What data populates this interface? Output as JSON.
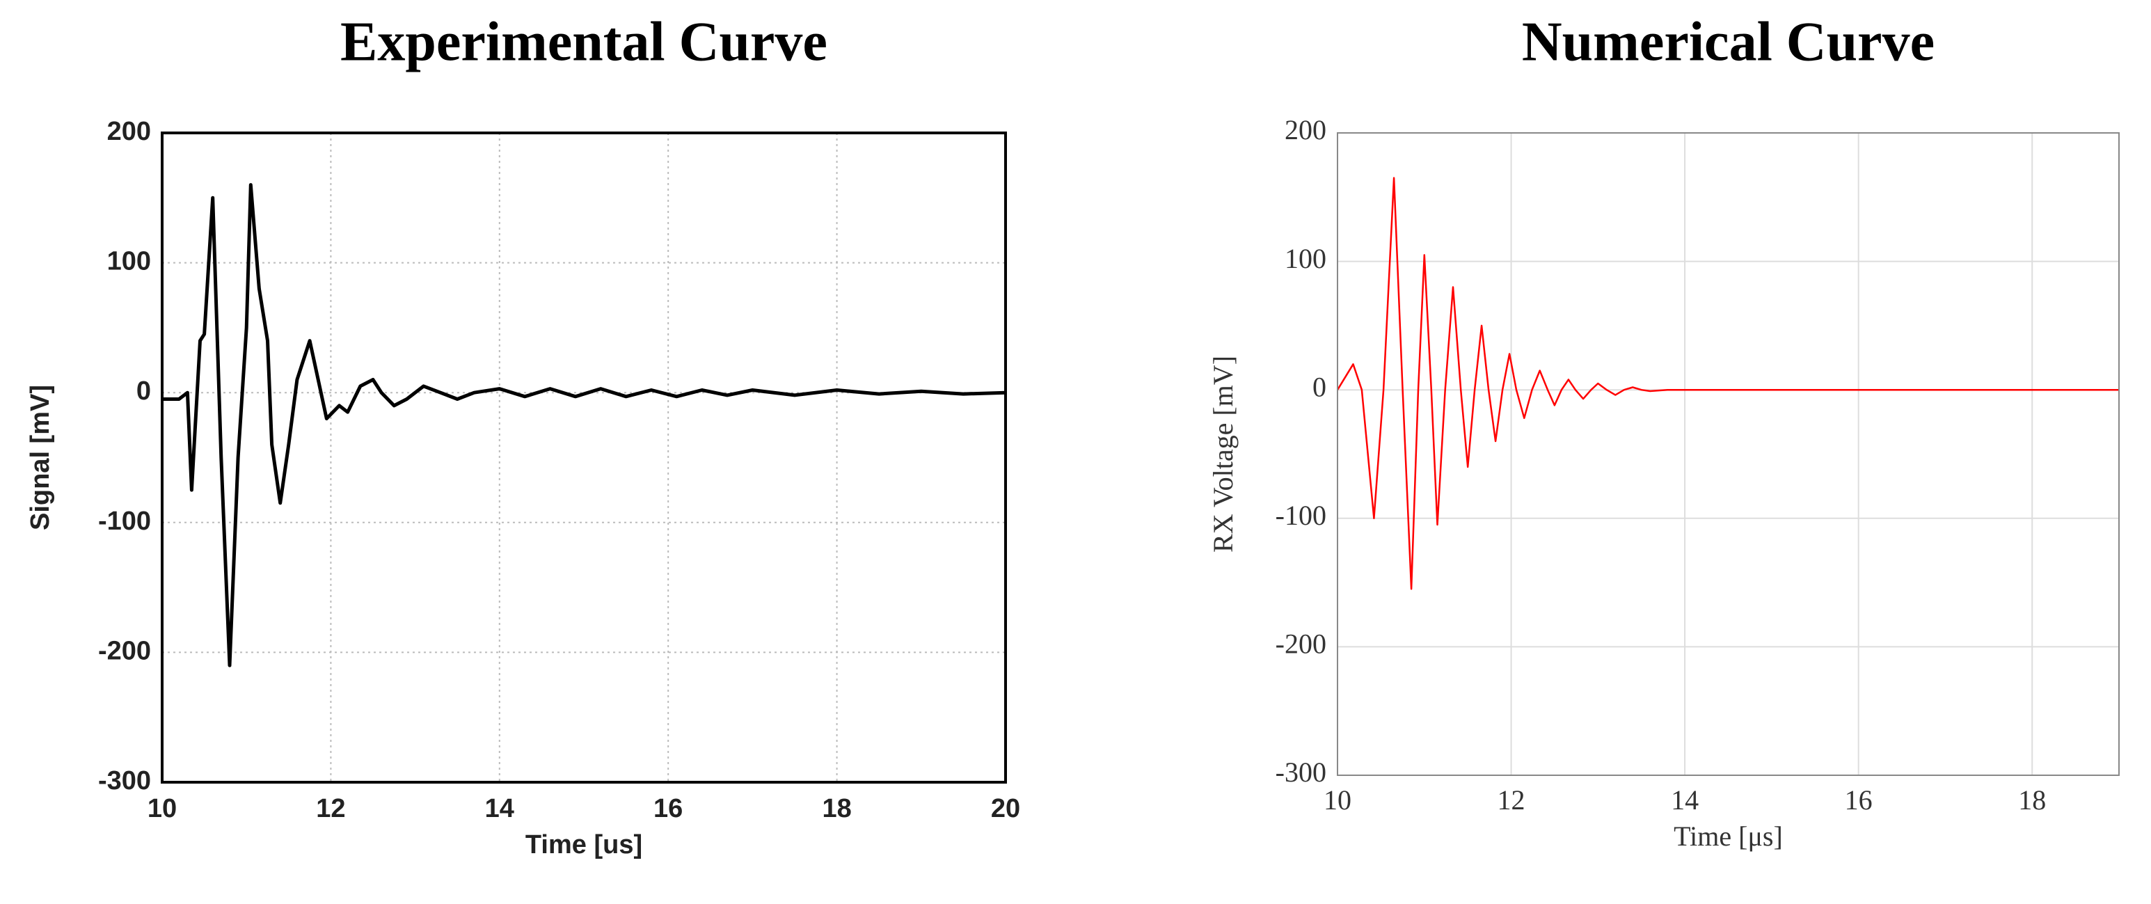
{
  "chart_data": [
    {
      "type": "line",
      "title": "Experimental Curve",
      "xlabel": "Time [us]",
      "ylabel": "Signal [mV]",
      "xlim": [
        10,
        20
      ],
      "ylim": [
        -300,
        200
      ],
      "xticks": [
        10,
        12,
        14,
        16,
        18,
        20
      ],
      "yticks": [
        -300,
        -200,
        -100,
        0,
        100,
        200
      ],
      "grid": true,
      "x": [
        10.0,
        10.2,
        10.3,
        10.35,
        10.45,
        10.5,
        10.6,
        10.7,
        10.8,
        10.9,
        11.0,
        11.05,
        11.15,
        11.25,
        11.3,
        11.4,
        11.5,
        11.6,
        11.75,
        11.85,
        11.95,
        12.1,
        12.2,
        12.35,
        12.5,
        12.6,
        12.75,
        12.9,
        13.1,
        13.3,
        13.5,
        13.7,
        14.0,
        14.3,
        14.6,
        14.9,
        15.2,
        15.5,
        15.8,
        16.1,
        16.4,
        16.7,
        17.0,
        17.5,
        18.0,
        18.5,
        19.0,
        19.5,
        20.0
      ],
      "series": [
        {
          "name": "Experimental",
          "color": "#000000",
          "values": [
            -5,
            -5,
            0,
            -75,
            40,
            45,
            150,
            -50,
            -210,
            -50,
            50,
            160,
            80,
            40,
            -40,
            -85,
            -40,
            10,
            40,
            10,
            -20,
            -10,
            -15,
            5,
            10,
            0,
            -10,
            -5,
            5,
            0,
            -5,
            0,
            3,
            -3,
            3,
            -3,
            3,
            -3,
            2,
            -3,
            2,
            -2,
            2,
            -2,
            2,
            -1,
            1,
            -1,
            0
          ]
        }
      ]
    },
    {
      "type": "line",
      "title": "Numerical Curve",
      "xlabel": "Time [μs]",
      "ylabel": "RX Voltage [mV]",
      "xlim": [
        10,
        19
      ],
      "ylim": [
        -300,
        200
      ],
      "xticks": [
        10,
        12,
        14,
        16,
        18
      ],
      "yticks": [
        -300,
        -200,
        -100,
        0,
        100,
        200
      ],
      "grid": true,
      "x": [
        10.0,
        10.18,
        10.28,
        10.42,
        10.53,
        10.65,
        10.75,
        10.85,
        10.93,
        11.0,
        11.08,
        11.15,
        11.24,
        11.33,
        11.42,
        11.5,
        11.58,
        11.66,
        11.74,
        11.82,
        11.9,
        11.98,
        12.06,
        12.15,
        12.24,
        12.33,
        12.42,
        12.5,
        12.58,
        12.66,
        12.74,
        12.83,
        12.92,
        13.0,
        13.1,
        13.2,
        13.3,
        13.4,
        13.5,
        13.6,
        13.8,
        19.0
      ],
      "series": [
        {
          "name": "Numerical",
          "color": "#ff0000",
          "values": [
            0,
            20,
            0,
            -100,
            0,
            165,
            0,
            -155,
            0,
            105,
            0,
            -105,
            0,
            80,
            0,
            -60,
            0,
            50,
            0,
            -40,
            0,
            28,
            0,
            -22,
            0,
            15,
            0,
            -12,
            0,
            8,
            0,
            -7,
            0,
            5,
            0,
            -4,
            0,
            2,
            0,
            -1,
            0,
            0
          ]
        }
      ]
    }
  ]
}
